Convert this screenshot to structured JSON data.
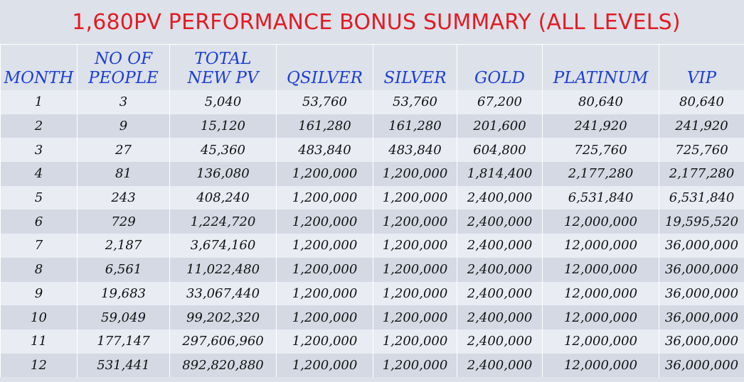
{
  "title": "1,680PV PERFORMANCE BONUS SUMMARY (ALL LEVELS)",
  "headers": [
    {
      "line1": "",
      "line2": "MONTH"
    },
    {
      "line1": "NO OF",
      "line2": "PEOPLE"
    },
    {
      "line1": "TOTAL",
      "line2": "NEW PV"
    },
    {
      "line1": "",
      "line2": "QSILVER"
    },
    {
      "line1": "",
      "line2": "SILVER"
    },
    {
      "line1": "",
      "line2": "GOLD"
    },
    {
      "line1": "",
      "line2": "PLATINUM"
    },
    {
      "line1": "",
      "line2": "VIP"
    }
  ],
  "rows": [
    [
      "1",
      "3",
      "5,040",
      "53,760",
      "53,760",
      "67,200",
      "80,640",
      "80,640"
    ],
    [
      "2",
      "9",
      "15,120",
      "161,280",
      "161,280",
      "201,600",
      "241,920",
      "241,920"
    ],
    [
      "3",
      "27",
      "45,360",
      "483,840",
      "483,840",
      "604,800",
      "725,760",
      "725,760"
    ],
    [
      "4",
      "81",
      "136,080",
      "1,200,000",
      "1,200,000",
      "1,814,400",
      "2,177,280",
      "2,177,280"
    ],
    [
      "5",
      "243",
      "408,240",
      "1,200,000",
      "1,200,000",
      "2,400,000",
      "6,531,840",
      "6,531,840"
    ],
    [
      "6",
      "729",
      "1,224,720",
      "1,200,000",
      "1,200,000",
      "2,400,000",
      "12,000,000",
      "19,595,520"
    ],
    [
      "7",
      "2,187",
      "3,674,160",
      "1,200,000",
      "1,200,000",
      "2,400,000",
      "12,000,000",
      "36,000,000"
    ],
    [
      "8",
      "6,561",
      "11,022,480",
      "1,200,000",
      "1,200,000",
      "2,400,000",
      "12,000,000",
      "36,000,000"
    ],
    [
      "9",
      "19,683",
      "33,067,440",
      "1,200,000",
      "1,200,000",
      "2,400,000",
      "12,000,000",
      "36,000,000"
    ],
    [
      "10",
      "59,049",
      "99,202,320",
      "1,200,000",
      "1,200,000",
      "2,400,000",
      "12,000,000",
      "36,000,000"
    ],
    [
      "11",
      "177,147",
      "297,606,960",
      "1,200,000",
      "1,200,000",
      "2,400,000",
      "12,000,000",
      "36,000,000"
    ],
    [
      "12",
      "531,441",
      "892,820,880",
      "1,200,000",
      "1,200,000",
      "2,400,000",
      "12,000,000",
      "36,000,000"
    ]
  ],
  "colors": {
    "title": "#e31b23",
    "header": "#1d3fd1",
    "row_light": "#e9ecf3",
    "row_dark": "#d4d9e4",
    "background": "#dde1ea"
  }
}
